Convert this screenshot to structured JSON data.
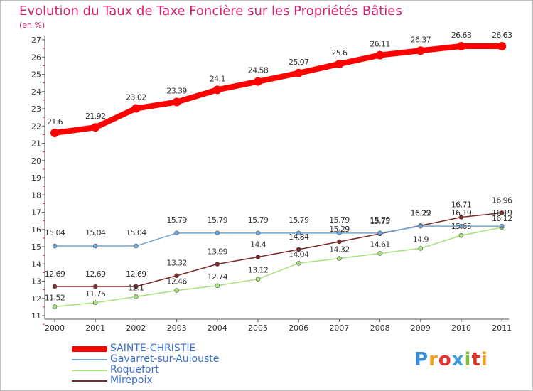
{
  "header": {
    "title": "Evolution du Taux de Taxe Foncière sur les Propriétés Bâties",
    "subtitle": "(en %)"
  },
  "colors": {
    "title": "#d02470",
    "legend_text": "#3a6fd0",
    "axis": "#555555",
    "grid_tick": "#d02470"
  },
  "legend": {
    "items": [
      {
        "label": "SAINTE-CHRISTIE",
        "color": "#ff0000"
      },
      {
        "label": "Gavarret-sur-Aulouste",
        "color": "#6fa6d6"
      },
      {
        "label": "Roquefort",
        "color": "#a6e07a"
      },
      {
        "label": "Mirepoix",
        "color": "#7a2a2a"
      }
    ]
  },
  "logo": {
    "text": "Proxiti"
  },
  "chart_data": {
    "type": "line",
    "x": [
      "2000",
      "2001",
      "2002",
      "2003",
      "2004",
      "2005",
      "2006",
      "2007",
      "2008",
      "2009",
      "2010",
      "2011"
    ],
    "ylim": [
      11,
      27
    ],
    "yticks": [
      "11",
      "12",
      "13",
      "14",
      "15",
      "16",
      "17",
      "18",
      "19",
      "20",
      "21",
      "22",
      "23",
      "24",
      "25",
      "26",
      "27"
    ],
    "ylabel": "(en %)",
    "grid": false,
    "series": [
      {
        "name": "SAINTE-CHRISTIE",
        "color": "#ff0000",
        "values": [
          21.6,
          21.92,
          23.02,
          23.39,
          24.1,
          24.58,
          25.07,
          25.6,
          26.11,
          26.37,
          26.63,
          26.63
        ],
        "labels": [
          "21.6",
          "21.92",
          "23.02",
          "23.39",
          "24.1",
          "24.58",
          "25.07",
          "25.6",
          "26.11",
          "26.37",
          "26.63",
          "26.63"
        ]
      },
      {
        "name": "Gavarret-sur-Aulouste",
        "color": "#6fa6d6",
        "values": [
          15.04,
          15.04,
          15.04,
          15.79,
          15.79,
          15.79,
          15.79,
          15.79,
          15.79,
          16.19,
          16.19,
          16.19
        ],
        "labels": [
          "15.04",
          "15.04",
          "15.04",
          "15.79",
          "15.79",
          "15.79",
          "15.79",
          "15.79",
          "15.79",
          "16.19",
          "16.19",
          "16.19"
        ]
      },
      {
        "name": "Roquefort",
        "color": "#a6e07a",
        "values": [
          11.52,
          11.75,
          12.1,
          12.46,
          12.74,
          13.12,
          14.04,
          14.32,
          14.61,
          14.9,
          15.65,
          16.12
        ],
        "labels": [
          "11.52",
          "11.75",
          "12.1",
          "12.46",
          "12.74",
          "13.12",
          "14.04",
          "14.32",
          "14.61",
          "14.9",
          "15.65",
          "16.12"
        ]
      },
      {
        "name": "Mirepoix",
        "color": "#7a2a2a",
        "values": [
          12.69,
          12.69,
          12.69,
          13.32,
          13.99,
          14.4,
          14.84,
          15.29,
          15.75,
          16.22,
          16.71,
          16.96
        ],
        "labels": [
          "12.69",
          "12.69",
          "12.69",
          "13.32",
          "13.99",
          "14.4",
          "14.84",
          "15.29",
          "15.75",
          "16.22",
          "16.71",
          "16.96"
        ]
      }
    ]
  }
}
